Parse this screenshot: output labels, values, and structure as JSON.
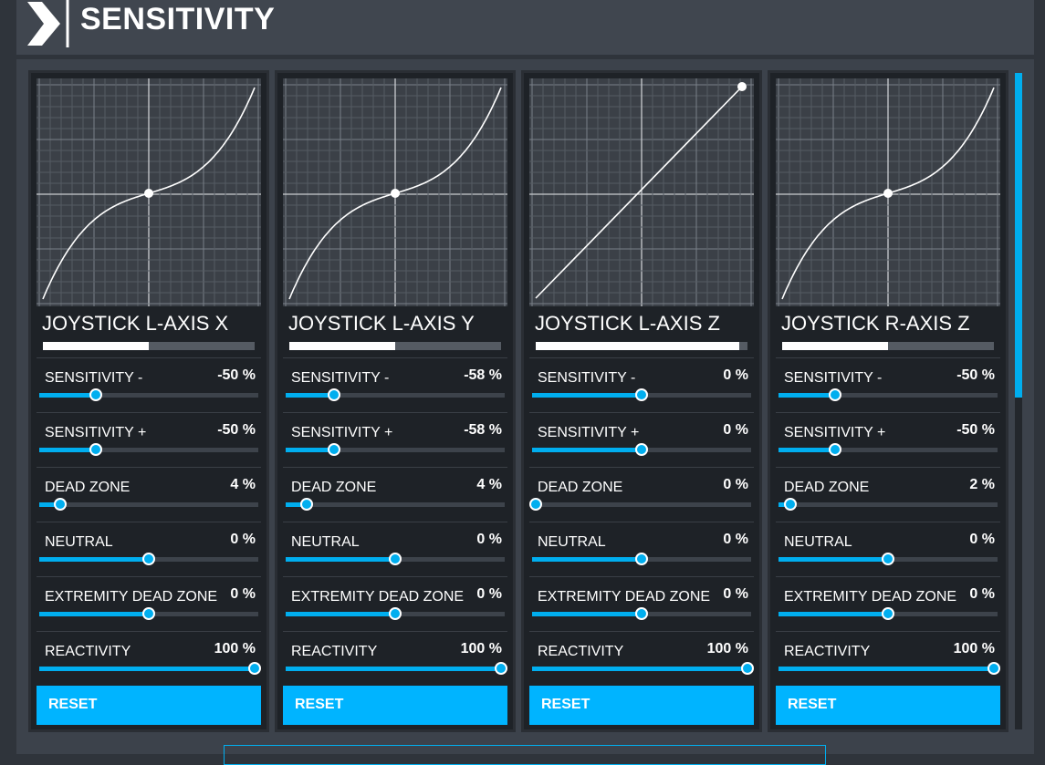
{
  "header": {
    "title": "SENSITIVITY"
  },
  "panels": [
    {
      "name": "JOYSTICK L-AXIS X",
      "settings": [
        {
          "label": "SENSITIVITY -",
          "value": "-50 %"
        },
        {
          "label": "SENSITIVITY +",
          "value": "-50 %"
        },
        {
          "label": "DEAD ZONE",
          "value": "4 %"
        },
        {
          "label": "NEUTRAL",
          "value": "0 %"
        },
        {
          "label": "EXTREMITY DEAD ZONE",
          "value": "0 %"
        },
        {
          "label": "REACTIVITY",
          "value": "100 %"
        }
      ],
      "reset": "RESET"
    },
    {
      "name": "JOYSTICK L-AXIS Y",
      "settings": [
        {
          "label": "SENSITIVITY -",
          "value": "-58 %"
        },
        {
          "label": "SENSITIVITY +",
          "value": "-58 %"
        },
        {
          "label": "DEAD ZONE",
          "value": "4 %"
        },
        {
          "label": "NEUTRAL",
          "value": "0 %"
        },
        {
          "label": "EXTREMITY DEAD ZONE",
          "value": "0 %"
        },
        {
          "label": "REACTIVITY",
          "value": "100 %"
        }
      ],
      "reset": "RESET"
    },
    {
      "name": "JOYSTICK L-AXIS Z",
      "settings": [
        {
          "label": "SENSITIVITY -",
          "value": "0 %"
        },
        {
          "label": "SENSITIVITY +",
          "value": "0 %"
        },
        {
          "label": "DEAD ZONE",
          "value": "0 %"
        },
        {
          "label": "NEUTRAL",
          "value": "0 %"
        },
        {
          "label": "EXTREMITY DEAD ZONE",
          "value": "0 %"
        },
        {
          "label": "REACTIVITY",
          "value": "100 %"
        }
      ],
      "reset": "RESET"
    },
    {
      "name": "JOYSTICK R-AXIS Z",
      "settings": [
        {
          "label": "SENSITIVITY -",
          "value": "-50 %"
        },
        {
          "label": "SENSITIVITY +",
          "value": "-50 %"
        },
        {
          "label": "DEAD ZONE",
          "value": "2 %"
        },
        {
          "label": "NEUTRAL",
          "value": "0 %"
        },
        {
          "label": "EXTREMITY DEAD ZONE",
          "value": "0 %"
        },
        {
          "label": "REACTIVITY",
          "value": "100 %"
        }
      ],
      "reset": "RESET"
    }
  ]
}
